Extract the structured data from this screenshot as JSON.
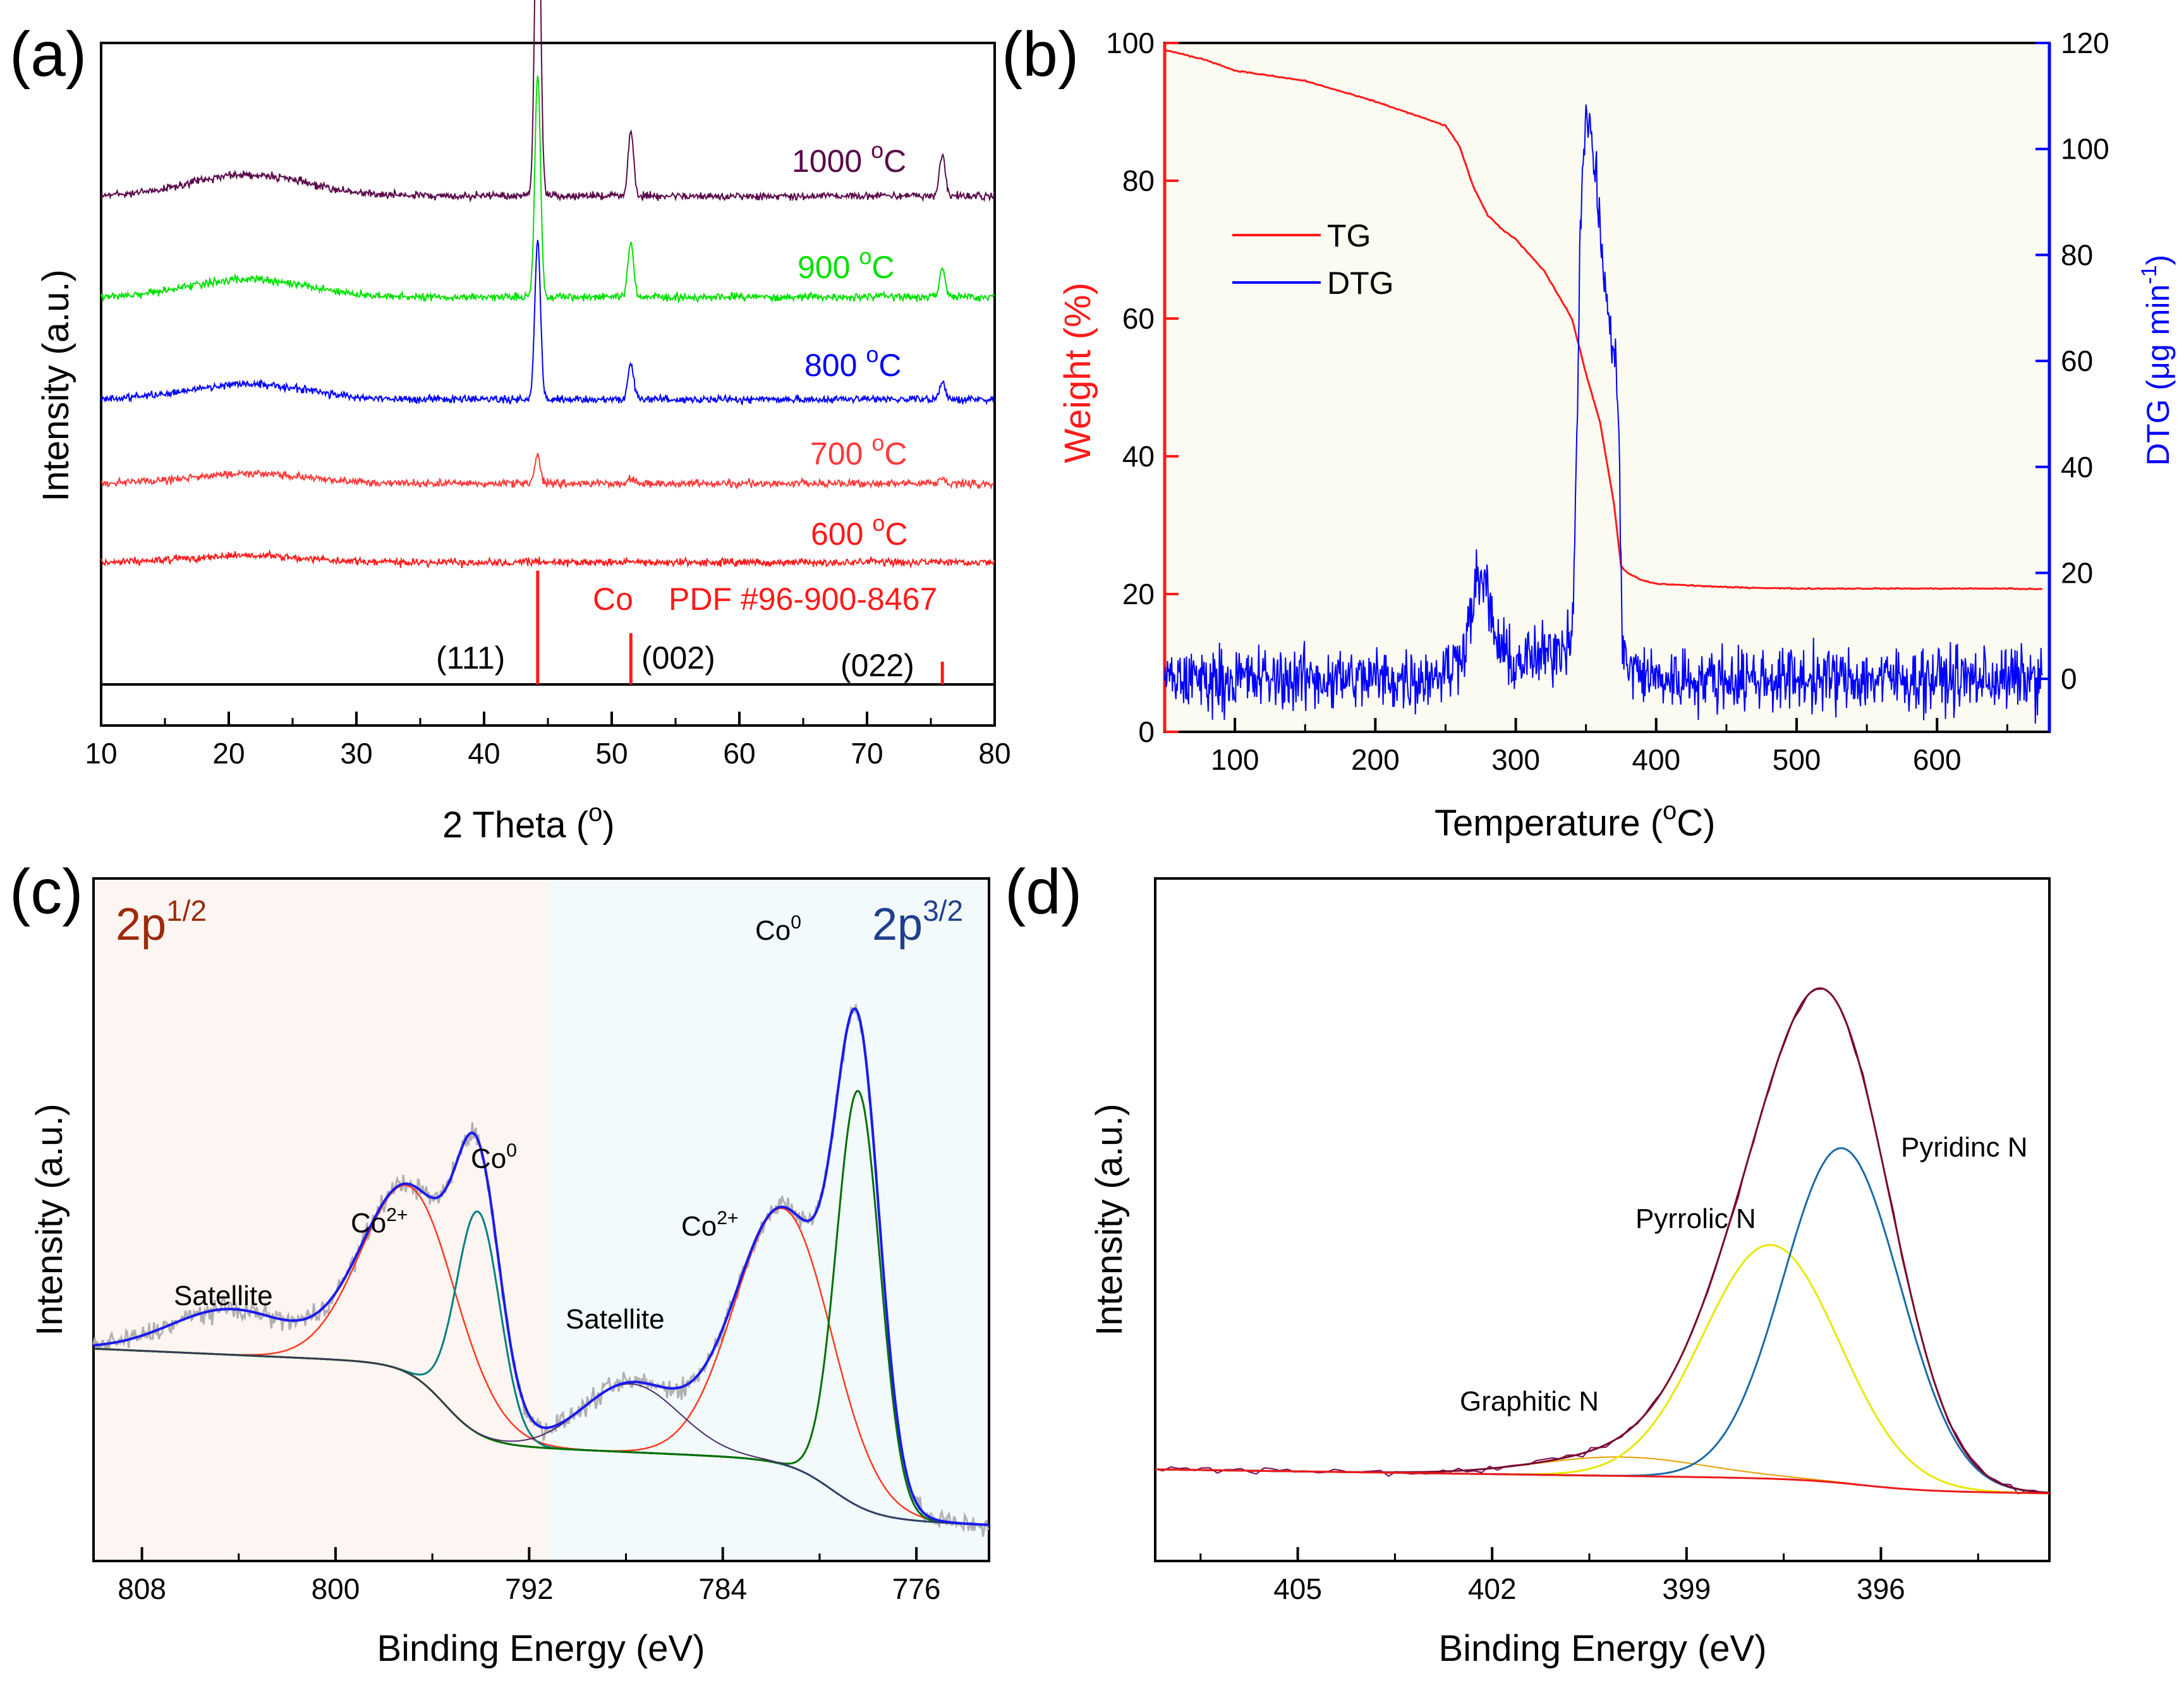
{
  "panel_letters": [
    "(a)",
    "(b)",
    "(c)",
    "(d)"
  ],
  "colors": {
    "red": "#ff1a1a",
    "blue": "#0000ff",
    "green": "#00e000",
    "purple": "#5a0a4a",
    "navy": "#1f3f8f",
    "brown": "#9b2a0a",
    "teal": "#008080",
    "darkgreen": "#007000",
    "olive": "#7a6a1a",
    "yellow": "#e8e800",
    "steelblue": "#1a6aaa",
    "maroon": "#7a0a2a",
    "gray": "#b0b0b0",
    "bg_b": "#fbfbf2",
    "bg_c_left": "#fdf5f2",
    "bg_c_right": "#f2fafc"
  },
  "chart_data": [
    {
      "id": "a",
      "type": "line",
      "xlabel_main": "2 Theta (",
      "xlabel_sup": "o",
      "xlabel_end": ")",
      "ylabel": "Intensity (a.u.)",
      "xlim": [
        10,
        80
      ],
      "xticks": [
        "10",
        "20",
        "30",
        "40",
        "50",
        "60",
        "70",
        "80"
      ],
      "series": [
        {
          "name_main": "1000 ",
          "name_sup": "o",
          "name_end": "C",
          "color": "#5a0a4a",
          "peaks": [
            {
              "x": 44.2,
              "h": 1.0
            },
            {
              "x": 51.5,
              "h": 0.18
            },
            {
              "x": 75.9,
              "h": 0.12
            }
          ]
        },
        {
          "name_main": "900 ",
          "name_sup": "o",
          "name_end": "C",
          "color": "#00e000",
          "peaks": [
            {
              "x": 44.2,
              "h": 0.82
            },
            {
              "x": 51.5,
              "h": 0.2
            },
            {
              "x": 75.9,
              "h": 0.1
            }
          ]
        },
        {
          "name_main": "800 ",
          "name_sup": "o",
          "name_end": "C",
          "color": "#0000ff",
          "peaks": [
            {
              "x": 44.2,
              "h": 0.7
            },
            {
              "x": 51.5,
              "h": 0.16
            },
            {
              "x": 75.9,
              "h": 0.08
            }
          ]
        },
        {
          "name_main": "700 ",
          "name_sup": "o",
          "name_end": "C",
          "color": "#ff3a3a",
          "peaks": [
            {
              "x": 44.2,
              "h": 0.3
            },
            {
              "x": 51.5,
              "h": 0.06
            },
            {
              "x": 75.9,
              "h": 0.04
            }
          ]
        },
        {
          "name_main": "600 ",
          "name_sup": "o",
          "name_end": "C",
          "color": "#ff1a1a",
          "peaks": [
            {
              "x": 44.2,
              "h": 0.06
            }
          ]
        }
      ],
      "reference": {
        "label_co": "Co",
        "label_pdf": "PDF #96-900-8467",
        "lines": [
          {
            "x": 44.2,
            "h": 1.0,
            "label": "(111)"
          },
          {
            "x": 51.5,
            "h": 0.45,
            "label": "(002)"
          },
          {
            "x": 75.9,
            "h": 0.2,
            "label": "(022)"
          }
        ]
      }
    },
    {
      "id": "b",
      "type": "line",
      "xlabel_main": "Temperature (",
      "xlabel_sup": "o",
      "xlabel_end": "C)",
      "ylabel_left": "Weight (%)",
      "ylabel_right_main": "DTG (",
      "ylabel_right_mu": "μ",
      "ylabel_right_mid": "g min",
      "ylabel_right_sup": "-1",
      "ylabel_right_end": ")",
      "xlim": [
        50,
        680
      ],
      "ylim_left": [
        0,
        100
      ],
      "ylim_right": [
        -10,
        120
      ],
      "xticks": [
        "100",
        "200",
        "300",
        "400",
        "500",
        "600"
      ],
      "yticks_left": [
        "0",
        "20",
        "40",
        "60",
        "80",
        "100"
      ],
      "yticks_right": [
        "0",
        "20",
        "40",
        "60",
        "80",
        "100",
        "120"
      ],
      "legend": [
        "TG",
        "DTG"
      ],
      "series": [
        {
          "name": "TG",
          "axis": "left",
          "x": [
            50,
            80,
            100,
            150,
            200,
            250,
            260,
            270,
            280,
            290,
            300,
            320,
            340,
            350,
            360,
            370,
            375,
            380,
            390,
            400,
            450,
            500,
            550,
            600,
            650,
            675
          ],
          "y": [
            99,
            97.5,
            96,
            94.5,
            91.5,
            88,
            85,
            79,
            75,
            73,
            71.5,
            67,
            60,
            52,
            45,
            33,
            24,
            23,
            22,
            21.5,
            21,
            20.8,
            20.8,
            20.8,
            20.8,
            20.7
          ]
        },
        {
          "name": "DTG",
          "axis": "right",
          "x": [
            50,
            230,
            255,
            265,
            270,
            275,
            280,
            285,
            295,
            320,
            340,
            343,
            346,
            350,
            352,
            355,
            360,
            365,
            370,
            373,
            376,
            380,
            400,
            500,
            600,
            675
          ],
          "y": [
            0,
            0,
            2,
            8,
            16,
            19,
            16,
            8,
            3,
            4,
            8,
            40,
            85,
            105,
            107,
            100,
            85,
            70,
            60,
            55,
            5,
            2,
            0,
            0,
            0,
            0
          ]
        }
      ]
    },
    {
      "id": "c",
      "type": "line",
      "xlabel": "Binding Energy (eV)",
      "ylabel": "Intensity (a.u.)",
      "xlim": [
        810,
        773
      ],
      "xticks": [
        "808",
        "800",
        "792",
        "784",
        "776"
      ],
      "region_labels": {
        "left_main": "2p",
        "left_sup": "1/2",
        "right_main": "2p",
        "right_sup": "3/2"
      },
      "annotations": [
        {
          "main": "Satellite",
          "sup": ""
        },
        {
          "main": "Co",
          "sup": "2+"
        },
        {
          "main": "Co",
          "sup": "0"
        },
        {
          "main": "Satellite",
          "sup": ""
        },
        {
          "main": "Co",
          "sup": "2+"
        },
        {
          "main": "Co",
          "sup": "0"
        }
      ],
      "components": [
        {
          "role": "background",
          "color": "#7a6a1a"
        },
        {
          "role": "Co2+ (2p1/2)",
          "center": 796.9,
          "height": 0.33,
          "width": 2.0,
          "color": "#ff3a20"
        },
        {
          "role": "Co0 (2p1/2)",
          "center": 794.1,
          "height": 0.39,
          "width": 0.9,
          "color": "#008080"
        },
        {
          "role": "Co2+ (2p3/2)",
          "center": 781.5,
          "height": 0.45,
          "width": 2.0,
          "color": "#ff3a20"
        },
        {
          "role": "Co0 (2p3/2)",
          "center": 778.4,
          "height": 0.73,
          "width": 0.9,
          "color": "#007000"
        },
        {
          "role": "Satellite (2p1/2)",
          "center": 804.3,
          "height": 0.08,
          "width": 2.5
        },
        {
          "role": "Satellite (2p3/2)",
          "center": 787.8,
          "height": 0.12,
          "width": 2.0,
          "color": "#4a2a6a"
        }
      ]
    },
    {
      "id": "d",
      "type": "line",
      "xlabel": "Binding Energy (eV)",
      "ylabel": "Intensity (a.u.)",
      "xlim": [
        407.2,
        393.4
      ],
      "xticks": [
        "405",
        "402",
        "399",
        "396"
      ],
      "annotations": [
        "Pyridinc N",
        "Pyrrolic N",
        "Graphitic N"
      ],
      "components": [
        {
          "name": "Pyridinc N",
          "center": 396.6,
          "height": 0.53,
          "width": 0.9,
          "color": "#1a6aaa"
        },
        {
          "name": "Pyrrolic N",
          "center": 397.7,
          "height": 0.37,
          "width": 1.05,
          "color": "#e8e800"
        },
        {
          "name": "Graphitic N",
          "center": 400.0,
          "height": 0.03,
          "width": 1.3,
          "color": "#e8a000"
        }
      ]
    }
  ]
}
